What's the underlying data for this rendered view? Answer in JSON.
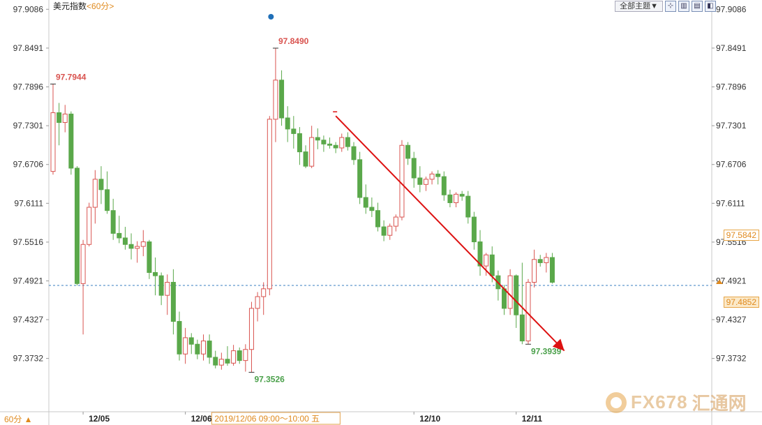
{
  "header": {
    "title": "美元指数",
    "period": "<60分>",
    "theme_label": "全部主题▼",
    "tools": [
      "⊹",
      "▥",
      "▤",
      "◧"
    ]
  },
  "footer": {
    "period_button": "60分 ▲",
    "crosshair_time": "2019/12/06 09:00～10:00 五"
  },
  "tags": {
    "current": "97.5842",
    "last": "97.4852"
  },
  "watermark": {
    "brand": "FX678",
    "cn": "汇通网"
  },
  "chart_data": {
    "type": "candlestick",
    "title": "美元指数",
    "period": "60分",
    "ylim": [
      97.33,
      97.91
    ],
    "y_ticks": [
      97.9086,
      97.8491,
      97.7896,
      97.7301,
      97.6706,
      97.6111,
      97.5516,
      97.4921,
      97.4327,
      97.3732
    ],
    "x_ticks": [
      "12/05",
      "12/06",
      "12/10",
      "12/11"
    ],
    "x_tick_index": [
      5,
      22,
      60,
      77
    ],
    "grid": false,
    "last_price": 97.4852,
    "marked_price": 97.5842,
    "annotations": [
      {
        "label": "97.7944",
        "type": "high",
        "index": 0
      },
      {
        "label": "97.8490",
        "type": "high",
        "index": 37
      },
      {
        "label": "97.3526",
        "type": "low",
        "index": 33
      },
      {
        "label": "97.3939",
        "type": "low",
        "index": 79
      }
    ],
    "trend_arrow": {
      "from": [
        47,
        97.745
      ],
      "to": [
        85,
        97.385
      ],
      "color": "#dd1111"
    },
    "candles": [
      [
        97.66,
        97.794,
        97.655,
        97.75
      ],
      [
        97.75,
        97.765,
        97.7,
        97.735
      ],
      [
        97.735,
        97.762,
        97.72,
        97.748
      ],
      [
        97.748,
        97.752,
        97.655,
        97.665
      ],
      [
        97.665,
        97.668,
        97.485,
        97.488
      ],
      [
        97.488,
        97.555,
        97.41,
        97.548
      ],
      [
        97.548,
        97.612,
        97.545,
        97.605
      ],
      [
        97.605,
        97.662,
        97.58,
        97.648
      ],
      [
        97.648,
        97.668,
        97.61,
        97.632
      ],
      [
        97.632,
        97.66,
        97.595,
        97.6
      ],
      [
        97.6,
        97.618,
        97.555,
        97.565
      ],
      [
        97.565,
        97.592,
        97.55,
        97.558
      ],
      [
        97.558,
        97.575,
        97.54,
        97.548
      ],
      [
        97.548,
        97.565,
        97.525,
        97.542
      ],
      [
        97.542,
        97.553,
        97.52,
        97.545
      ],
      [
        97.545,
        97.57,
        97.53,
        97.552
      ],
      [
        97.552,
        97.555,
        97.495,
        97.505
      ],
      [
        97.505,
        97.528,
        97.47,
        97.5
      ],
      [
        97.5,
        97.505,
        97.455,
        97.47
      ],
      [
        97.47,
        97.502,
        97.44,
        97.49
      ],
      [
        97.49,
        97.51,
        97.41,
        97.43
      ],
      [
        97.43,
        97.445,
        97.37,
        97.38
      ],
      [
        97.38,
        97.42,
        97.365,
        97.405
      ],
      [
        97.405,
        97.412,
        97.38,
        97.395
      ],
      [
        97.395,
        97.402,
        97.372,
        97.38
      ],
      [
        97.38,
        97.41,
        97.37,
        97.4
      ],
      [
        97.4,
        97.41,
        97.365,
        97.375
      ],
      [
        97.375,
        97.385,
        97.358,
        97.363
      ],
      [
        97.363,
        97.382,
        97.356,
        97.372
      ],
      [
        97.372,
        97.392,
        97.362,
        97.366
      ],
      [
        97.366,
        97.394,
        97.362,
        97.385
      ],
      [
        97.385,
        97.39,
        97.365,
        97.37
      ],
      [
        97.37,
        97.395,
        97.353,
        97.387
      ],
      [
        97.387,
        97.46,
        97.352,
        97.45
      ],
      [
        97.45,
        97.475,
        97.43,
        97.468
      ],
      [
        97.468,
        97.49,
        97.44,
        97.48
      ],
      [
        97.48,
        97.745,
        97.47,
        97.74
      ],
      [
        97.74,
        97.849,
        97.705,
        97.8
      ],
      [
        97.8,
        97.815,
        97.73,
        97.742
      ],
      [
        97.742,
        97.76,
        97.705,
        97.725
      ],
      [
        97.725,
        97.745,
        97.695,
        97.718
      ],
      [
        97.718,
        97.728,
        97.67,
        97.69
      ],
      [
        97.69,
        97.7,
        97.665,
        97.668
      ],
      [
        97.668,
        97.73,
        97.665,
        97.712
      ],
      [
        97.712,
        97.726,
        97.694,
        97.708
      ],
      [
        97.708,
        97.715,
        97.69,
        97.702
      ],
      [
        97.702,
        97.712,
        97.695,
        97.7
      ],
      [
        97.7,
        97.705,
        97.688,
        97.696
      ],
      [
        97.696,
        97.718,
        97.69,
        97.712
      ],
      [
        97.712,
        97.72,
        97.692,
        97.698
      ],
      [
        97.698,
        97.705,
        97.67,
        97.678
      ],
      [
        97.678,
        97.69,
        97.61,
        97.62
      ],
      [
        97.62,
        97.64,
        97.595,
        97.605
      ],
      [
        97.605,
        97.62,
        97.59,
        97.6
      ],
      [
        97.6,
        97.612,
        97.568,
        97.575
      ],
      [
        97.575,
        97.585,
        97.553,
        97.562
      ],
      [
        97.562,
        97.58,
        97.555,
        97.576
      ],
      [
        97.576,
        97.594,
        97.568,
        97.59
      ],
      [
        97.59,
        97.708,
        97.585,
        97.7
      ],
      [
        97.7,
        97.705,
        97.67,
        97.68
      ],
      [
        97.68,
        97.69,
        97.635,
        97.65
      ],
      [
        97.65,
        97.668,
        97.628,
        97.64
      ],
      [
        97.64,
        97.652,
        97.63,
        97.648
      ],
      [
        97.648,
        97.66,
        97.64,
        97.656
      ],
      [
        97.656,
        97.662,
        97.64,
        97.652
      ],
      [
        97.652,
        97.66,
        97.615,
        97.624
      ],
      [
        97.624,
        97.632,
        97.605,
        97.612
      ],
      [
        97.612,
        97.628,
        97.605,
        97.625
      ],
      [
        97.625,
        97.63,
        97.615,
        97.622
      ],
      [
        97.622,
        97.63,
        97.58,
        97.59
      ],
      [
        97.59,
        97.598,
        97.54,
        97.552
      ],
      [
        97.552,
        97.57,
        97.5,
        97.515
      ],
      [
        97.515,
        97.535,
        97.5,
        97.532
      ],
      [
        97.532,
        97.545,
        97.49,
        97.5
      ],
      [
        97.5,
        97.508,
        97.462,
        97.48
      ],
      [
        97.48,
        97.486,
        97.44,
        97.45
      ],
      [
        97.45,
        97.51,
        97.44,
        97.5
      ],
      [
        97.5,
        97.502,
        97.42,
        97.44
      ],
      [
        97.44,
        97.52,
        97.395,
        97.4
      ],
      [
        97.4,
        97.495,
        97.395,
        97.49
      ],
      [
        97.49,
        97.54,
        97.482,
        97.525
      ],
      [
        97.525,
        97.532,
        97.514,
        97.52
      ],
      [
        97.52,
        97.535,
        97.505,
        97.528
      ],
      [
        97.528,
        97.535,
        97.488,
        97.49
      ]
    ]
  }
}
